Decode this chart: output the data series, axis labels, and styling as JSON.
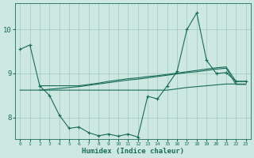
{
  "background_color": "#cce8e0",
  "grid_color": "#a0c8be",
  "line_color": "#1a6b5a",
  "xlabel": "Humidex (Indice chaleur)",
  "xlim": [
    -0.5,
    23.5
  ],
  "ylim": [
    7.5,
    10.6
  ],
  "yticks": [
    8,
    9,
    10
  ],
  "xticks": [
    0,
    1,
    2,
    3,
    4,
    5,
    6,
    7,
    8,
    9,
    10,
    11,
    12,
    13,
    14,
    15,
    16,
    17,
    18,
    19,
    20,
    21,
    22,
    23
  ],
  "line1_x": [
    0,
    1,
    2,
    3,
    4,
    5,
    6,
    7,
    8,
    9,
    10,
    11,
    12,
    13,
    14,
    15,
    16,
    17,
    18,
    19,
    20,
    21,
    22,
    23
  ],
  "line1_y": [
    9.55,
    9.65,
    8.72,
    8.5,
    8.05,
    7.75,
    7.78,
    7.65,
    7.58,
    7.62,
    7.57,
    7.62,
    7.55,
    8.48,
    8.42,
    8.72,
    9.05,
    10.0,
    10.38,
    9.3,
    9.0,
    9.02,
    8.82,
    8.82
  ],
  "line2_x": [
    2,
    3,
    4,
    5,
    6,
    7,
    8,
    9,
    10,
    11,
    12,
    13,
    14,
    15,
    16,
    17,
    18,
    19,
    20,
    21,
    22,
    23
  ],
  "line2_y": [
    8.72,
    8.72,
    8.72,
    8.72,
    8.72,
    8.75,
    8.78,
    8.82,
    8.85,
    8.88,
    8.9,
    8.93,
    8.95,
    8.98,
    9.01,
    9.04,
    9.07,
    9.1,
    9.13,
    9.15,
    8.82,
    8.82
  ],
  "line3_x": [
    2,
    3,
    4,
    5,
    6,
    7,
    8,
    9,
    10,
    11,
    12,
    13,
    14,
    15,
    16,
    17,
    18,
    19,
    20,
    21,
    22,
    23
  ],
  "line3_y": [
    8.62,
    8.64,
    8.66,
    8.68,
    8.7,
    8.73,
    8.76,
    8.79,
    8.82,
    8.85,
    8.87,
    8.9,
    8.93,
    8.96,
    8.99,
    9.02,
    9.04,
    9.07,
    9.1,
    9.12,
    8.75,
    8.75
  ],
  "line4_x": [
    0,
    1,
    2,
    3,
    4,
    5,
    6,
    7,
    8,
    9,
    10,
    11,
    12,
    13,
    14,
    15,
    16,
    17,
    18,
    19,
    20,
    21,
    22,
    23
  ],
  "line4_y": [
    8.62,
    8.62,
    8.62,
    8.62,
    8.62,
    8.62,
    8.62,
    8.62,
    8.62,
    8.62,
    8.62,
    8.62,
    8.62,
    8.62,
    8.62,
    8.62,
    8.65,
    8.68,
    8.7,
    8.72,
    8.74,
    8.76,
    8.76,
    8.76
  ]
}
